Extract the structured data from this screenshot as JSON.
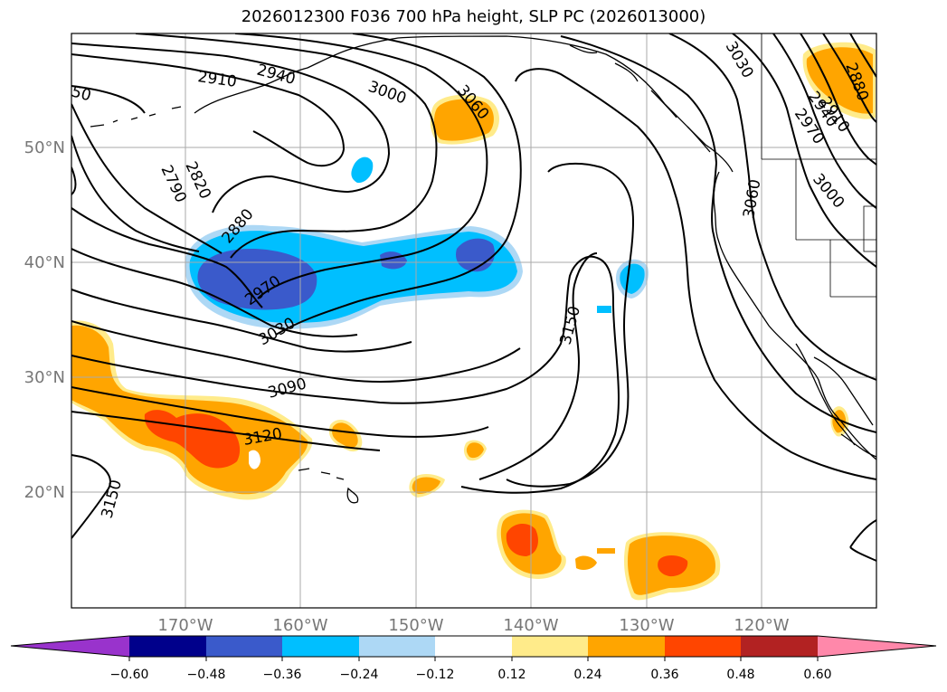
{
  "title": "2026012300 F036 700 hPa height, SLP PC (2026013000)",
  "colors": {
    "neg_060": "#9933cc",
    "neg_048": "#00008b",
    "neg_036": "#3a5acb",
    "neg_024": "#00bfff",
    "neg_012": "#add8f5",
    "neutral": "#ffffff",
    "pos_012": "#ffeb8a",
    "pos_024": "#ffa500",
    "pos_036": "#ff4500",
    "pos_048": "#b22222",
    "pos_060": "#ff88aa",
    "contour": "#000000",
    "gridline": "#aaaaaa"
  },
  "axes": {
    "lat_labels": [
      "50°N",
      "40°N",
      "30°N",
      "20°N"
    ],
    "lon_labels": [
      "170°W",
      "160°W",
      "150°W",
      "140°W",
      "130°W",
      "120°W"
    ]
  },
  "contour_labels": [
    "50",
    "2910",
    "2940",
    "3000",
    "3060",
    "3030",
    "2880",
    "2910",
    "2940",
    "2970",
    "3000",
    "2820",
    "2790",
    "2880",
    "2970",
    "3030",
    "3060",
    "3150",
    "3090",
    "3120",
    "3150"
  ],
  "colorbar": {
    "ticks": [
      "−0.60",
      "−0.48",
      "−0.36",
      "−0.24",
      "−0.12",
      "0.12",
      "0.24",
      "0.36",
      "0.48",
      "0.60"
    ]
  }
}
